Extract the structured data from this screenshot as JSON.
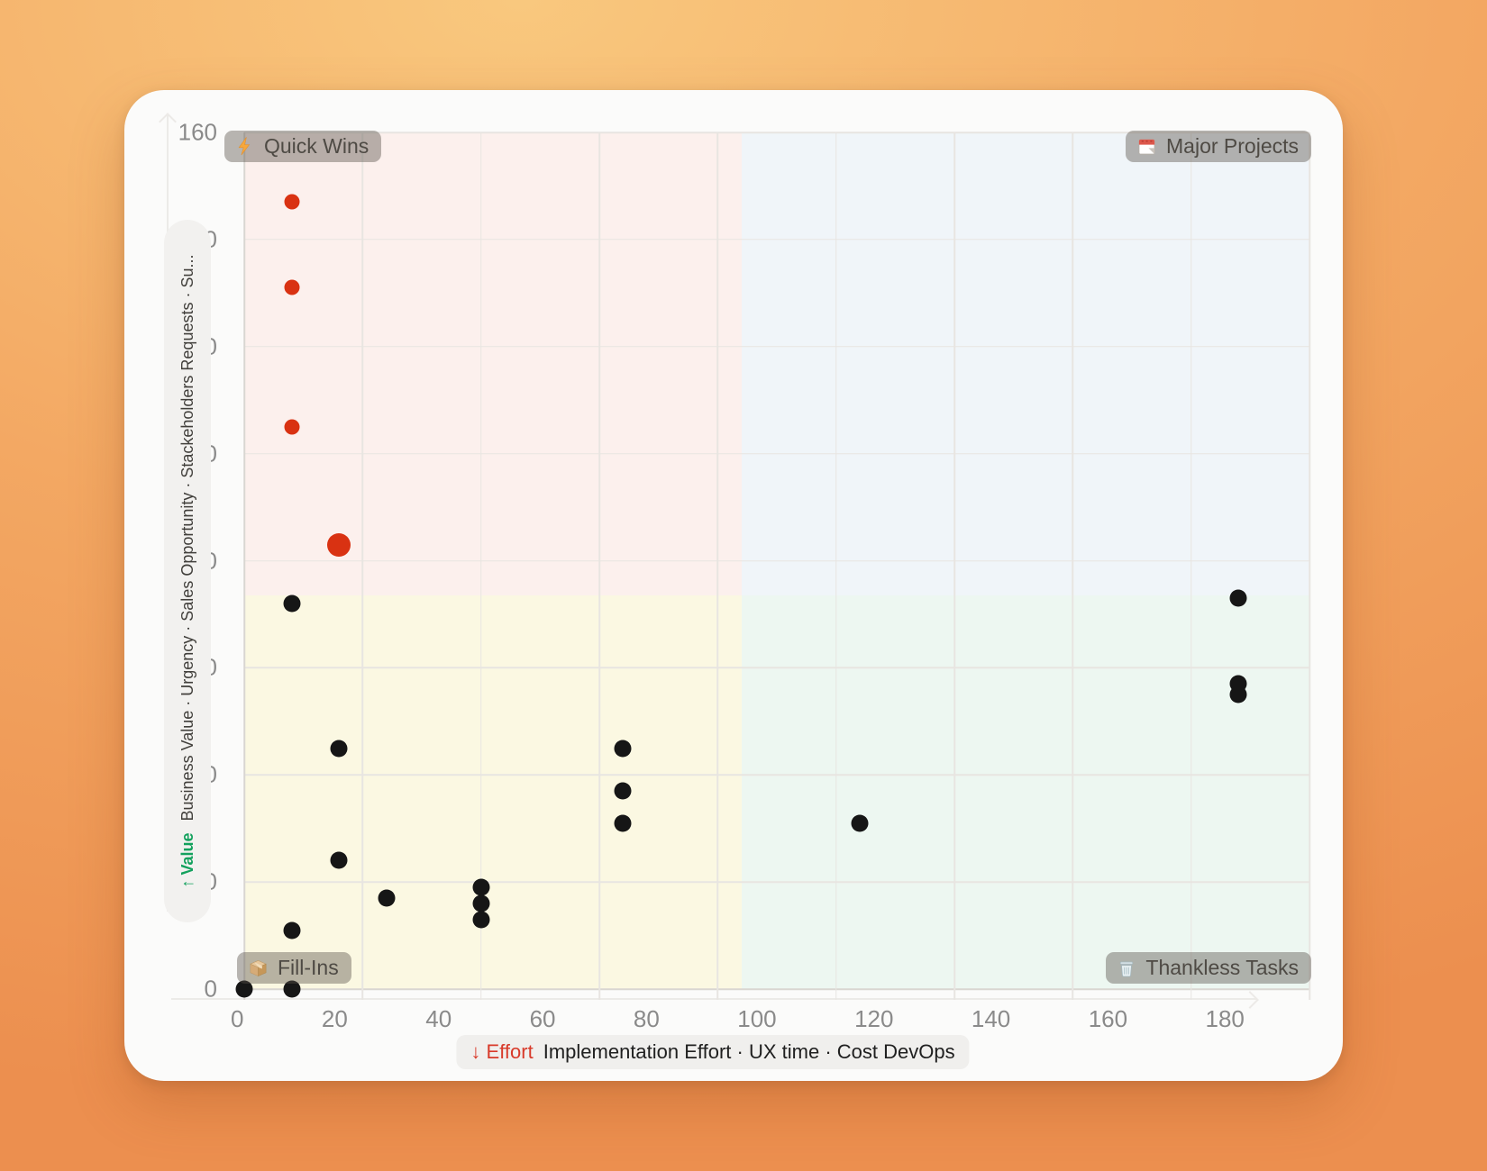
{
  "page": {
    "background_gradient": [
      "#f9c87e",
      "#f3a863",
      "#ec8f4f"
    ],
    "card_background": "#fbfbfa"
  },
  "chart_data": {
    "type": "scatter",
    "title": "",
    "grid": true,
    "legend": "none",
    "x_axis": {
      "accent": "↓ Effort",
      "accent_color": "#d83a2a",
      "title": "Implementation Effort · UX time · Cost DevOps",
      "min": 0,
      "max": 180,
      "tick_step": 20,
      "tick_labels": [
        "0",
        "20",
        "40",
        "60",
        "80",
        "100",
        "120",
        "140",
        "160",
        "180"
      ]
    },
    "y_axis": {
      "accent": "↑ Value",
      "accent_color": "#13a15d",
      "title": "Business Value · Urgency · Sales Opportunity · Stackeholders Requests · Su...",
      "min": 0,
      "max": 160,
      "tick_step": 20,
      "tick_labels": [
        "160",
        "140",
        "120",
        "100",
        "80",
        "60",
        "40",
        "20",
        "0"
      ]
    },
    "quadrant_split": {
      "x": 84,
      "y": 73.5
    },
    "quadrants": {
      "quick_wins": {
        "label": "Quick Wins",
        "icon": "zap-icon",
        "position": "top-left",
        "bg": "#fcf0ed"
      },
      "major_projects": {
        "label": "Major Projects",
        "icon": "calendar-icon",
        "position": "top-right",
        "bg": "#f0f5f9"
      },
      "fill_ins": {
        "label": "Fill-Ins",
        "icon": "package-icon",
        "position": "bottom-left",
        "bg": "#fbf8e2"
      },
      "thankless_tasks": {
        "label": "Thankless Tasks",
        "icon": "trash-icon",
        "position": "bottom-right",
        "bg": "#edf7f1"
      }
    },
    "series": [
      {
        "name": "highlighted",
        "color": "#d93212",
        "points": [
          {
            "x": 8,
            "y": 147,
            "r": 8.5
          },
          {
            "x": 8,
            "y": 131,
            "r": 8.5
          },
          {
            "x": 8,
            "y": 105,
            "r": 8.5
          },
          {
            "x": 16,
            "y": 83,
            "r": 13
          }
        ]
      },
      {
        "name": "default",
        "color": "#161616",
        "points": [
          {
            "x": 8,
            "y": 72,
            "r": 9.5
          },
          {
            "x": 16,
            "y": 45,
            "r": 9.5
          },
          {
            "x": 64,
            "y": 45,
            "r": 9.5
          },
          {
            "x": 64,
            "y": 37,
            "r": 9.5
          },
          {
            "x": 64,
            "y": 31,
            "r": 9.5
          },
          {
            "x": 104,
            "y": 31,
            "r": 9.5
          },
          {
            "x": 168,
            "y": 73,
            "r": 9.5
          },
          {
            "x": 168,
            "y": 57,
            "r": 9.5
          },
          {
            "x": 168,
            "y": 55,
            "r": 9.5
          },
          {
            "x": 16,
            "y": 24,
            "r": 9.5
          },
          {
            "x": 24,
            "y": 17,
            "r": 9.5
          },
          {
            "x": 40,
            "y": 19,
            "r": 9.5
          },
          {
            "x": 40,
            "y": 16,
            "r": 9.5
          },
          {
            "x": 40,
            "y": 13,
            "r": 9.5
          },
          {
            "x": 8,
            "y": 11,
            "r": 9.5
          },
          {
            "x": 0,
            "y": 0,
            "r": 9.5
          },
          {
            "x": 8,
            "y": 0,
            "r": 9.5
          }
        ]
      }
    ]
  }
}
